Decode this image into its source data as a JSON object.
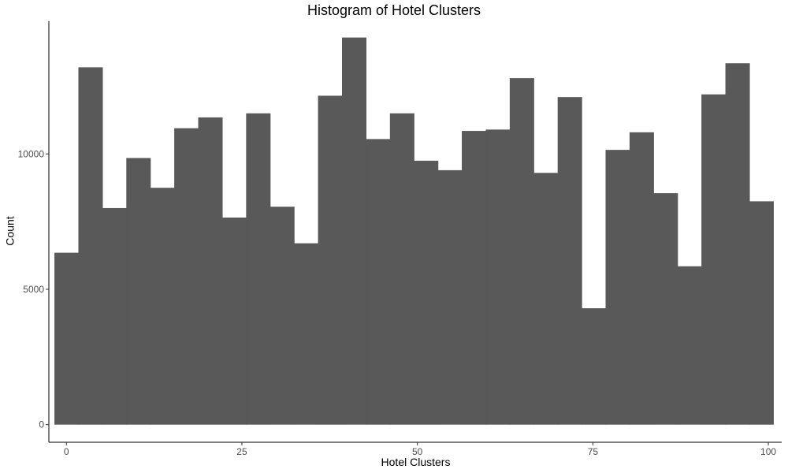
{
  "chart_data": {
    "type": "bar",
    "title": "Histogram of Hotel Clusters",
    "xlabel": "Hotel Clusters",
    "ylabel": "Count",
    "bar_color": "#595959",
    "background": "#ffffff",
    "grid": false,
    "xlim": [
      -2.5,
      101.9
    ],
    "ylim": [
      -650,
      14900
    ],
    "x_ticks": [
      0,
      25,
      50,
      75,
      100
    ],
    "x_tick_labels": [
      "0",
      "25",
      "50",
      "75",
      "100"
    ],
    "y_ticks": [
      0,
      5000,
      10000
    ],
    "y_tick_labels": [
      "0",
      "5000",
      "10000"
    ],
    "bin_width": 3.414,
    "bin_centers": [
      0.0,
      3.414,
      6.828,
      10.241,
      13.655,
      17.069,
      20.483,
      23.897,
      27.31,
      30.724,
      34.138,
      37.552,
      40.966,
      44.379,
      47.793,
      51.207,
      54.621,
      58.034,
      61.448,
      64.862,
      68.276,
      71.69,
      75.103,
      78.517,
      81.931,
      85.345,
      88.759,
      92.172,
      95.586,
      99.0
    ],
    "values": [
      6350,
      13200,
      8000,
      9850,
      8750,
      10950,
      11350,
      7650,
      11500,
      8050,
      6700,
      12150,
      14300,
      10550,
      11500,
      9750,
      9400,
      10850,
      10900,
      12800,
      9300,
      12100,
      4300,
      10150,
      10800,
      8550,
      5850,
      12200,
      13350,
      8250
    ]
  }
}
